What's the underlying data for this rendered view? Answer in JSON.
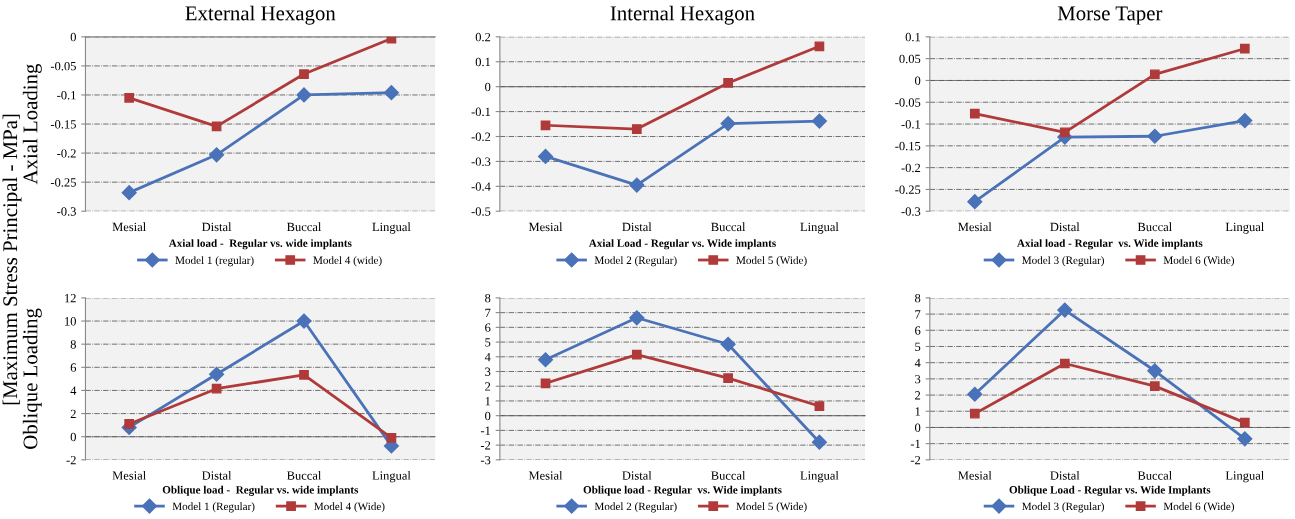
{
  "chart_data": [
    {
      "type": "line",
      "title": "External Hexagon",
      "xlabel": "Axial load -  Regular vs. wide implants",
      "ylabel": "Axial Loading",
      "annotations": [
        "[Maximum Stress Principal - MPa]"
      ],
      "categories": [
        "Mesial",
        "Distal",
        "Buccal",
        "Lingual"
      ],
      "ylim": [
        -0.3,
        0
      ],
      "yticks": [
        -0.3,
        -0.25,
        -0.2,
        -0.15,
        -0.1,
        -0.05,
        0
      ],
      "grid": "y",
      "legend": "bottom",
      "series": [
        {
          "name": "Model 1 (regular)",
          "color": "#4a72b8",
          "marker": "diamond",
          "values": [
            -0.268,
            -0.203,
            -0.1,
            -0.096
          ]
        },
        {
          "name": "Model 4 (wide)",
          "color": "#b03a3a",
          "marker": "square",
          "values": [
            -0.105,
            -0.154,
            -0.064,
            -0.003
          ]
        }
      ]
    },
    {
      "type": "line",
      "title": "Internal Hexagon",
      "xlabel": "Axial Load - Regular vs. Wide implants",
      "categories": [
        "Mesial",
        "Distal",
        "Buccal",
        "Lingual"
      ],
      "ylim": [
        -0.5,
        0.2
      ],
      "yticks": [
        -0.5,
        -0.4,
        -0.3,
        -0.2,
        -0.1,
        0,
        0.1,
        0.2
      ],
      "grid": "y",
      "legend": "bottom",
      "series": [
        {
          "name": "Model 2 (Regular)",
          "color": "#4a72b8",
          "marker": "diamond",
          "values": [
            -0.28,
            -0.395,
            -0.148,
            -0.138
          ]
        },
        {
          "name": "Model 5 (Wide)",
          "color": "#b03a3a",
          "marker": "square",
          "values": [
            -0.155,
            -0.17,
            0.015,
            0.162
          ]
        }
      ]
    },
    {
      "type": "line",
      "title": "Morse Taper",
      "xlabel": "Axial load - Regular  vs. Wide implants",
      "categories": [
        "Mesial",
        "Distal",
        "Buccal",
        "Lingual"
      ],
      "ylim": [
        -0.3,
        0.1
      ],
      "yticks": [
        -0.3,
        -0.25,
        -0.2,
        -0.15,
        -0.1,
        -0.05,
        0,
        0.05,
        0.1
      ],
      "grid": "y",
      "legend": "bottom",
      "series": [
        {
          "name": "Model 3 (Regular)",
          "color": "#4a72b8",
          "marker": "diamond",
          "values": [
            -0.278,
            -0.13,
            -0.128,
            -0.092
          ]
        },
        {
          "name": "Model 6 (Wide)",
          "color": "#b03a3a",
          "marker": "square",
          "values": [
            -0.076,
            -0.119,
            0.014,
            0.073
          ]
        }
      ]
    },
    {
      "type": "line",
      "xlabel": "Oblique load -  Regular vs. wide implants",
      "ylabel": "Oblique Loading",
      "categories": [
        "Mesial",
        "Distal",
        "Buccal",
        "Lingual"
      ],
      "ylim": [
        -2,
        12
      ],
      "yticks": [
        -2,
        0,
        2,
        4,
        6,
        8,
        10,
        12
      ],
      "grid": "y",
      "legend": "bottom",
      "series": [
        {
          "name": "Model 1 (Regular)",
          "color": "#4a72b8",
          "marker": "diamond",
          "values": [
            0.8,
            5.4,
            10,
            -0.8
          ]
        },
        {
          "name": "Model 4 (Wide)",
          "color": "#b03a3a",
          "marker": "square",
          "values": [
            1.1,
            4.15,
            5.35,
            -0.1
          ]
        }
      ]
    },
    {
      "type": "line",
      "xlabel": "Oblique load - Regular  vs. Wide implants",
      "categories": [
        "Mesial",
        "Distal",
        "Buccal",
        "Lingual"
      ],
      "ylim": [
        -3,
        8
      ],
      "yticks": [
        -3,
        -2,
        -1,
        0,
        1,
        2,
        3,
        4,
        5,
        6,
        7,
        8
      ],
      "grid": "y",
      "legend": "bottom",
      "series": [
        {
          "name": "Model 2 (Regular)",
          "color": "#4a72b8",
          "marker": "diamond",
          "values": [
            3.8,
            6.65,
            4.85,
            -1.8
          ]
        },
        {
          "name": "Model 5 (Wide)",
          "color": "#b03a3a",
          "marker": "square",
          "values": [
            2.2,
            4.15,
            2.55,
            0.65
          ]
        }
      ]
    },
    {
      "type": "line",
      "xlabel": "Oblique Load - Regular vs. Wide Implants",
      "categories": [
        "Mesial",
        "Distal",
        "Buccal",
        "Lingual"
      ],
      "ylim": [
        -2,
        8
      ],
      "yticks": [
        -2,
        -1,
        0,
        1,
        2,
        3,
        4,
        5,
        6,
        7,
        8
      ],
      "grid": "y",
      "legend": "bottom",
      "series": [
        {
          "name": "Model 3 (Regular)",
          "color": "#4a72b8",
          "marker": "diamond",
          "values": [
            2.05,
            7.25,
            3.5,
            -0.7
          ]
        },
        {
          "name": "Model 6 (Wide)",
          "color": "#b03a3a",
          "marker": "square",
          "values": [
            0.85,
            3.95,
            2.55,
            0.3
          ]
        }
      ]
    }
  ]
}
